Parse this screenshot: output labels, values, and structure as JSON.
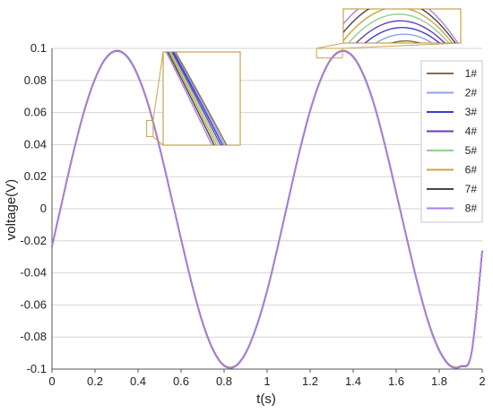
{
  "chart_data": {
    "type": "line",
    "title": "",
    "xlabel": "t(s)",
    "ylabel": "voltage(V)",
    "xlim": [
      0,
      2
    ],
    "ylim": [
      -0.1,
      0.1
    ],
    "x_ticks": [
      0,
      0.2,
      0.4,
      0.6,
      0.8,
      1,
      1.2,
      1.4,
      1.6,
      1.8,
      2
    ],
    "x_tick_labels": [
      "0",
      "0.2",
      "0.4",
      "0.6",
      "0.8",
      "1",
      "1.2",
      "1.4",
      "1.6",
      "1.8",
      "2"
    ],
    "y_ticks": [
      -0.1,
      -0.08,
      -0.06,
      -0.04,
      -0.02,
      0,
      0.02,
      0.04,
      0.06,
      0.08,
      0.1
    ],
    "y_tick_labels": [
      "-0.1",
      "-0.08",
      "-0.06",
      "-0.04",
      "-0.02",
      "0",
      "0.02",
      "0.04",
      "0.06",
      "0.08",
      "0.1"
    ],
    "grid": "horizontal",
    "legend_position": "right",
    "x": [
      0,
      0.05,
      0.1,
      0.15,
      0.2,
      0.25,
      0.3,
      0.35,
      0.4,
      0.45,
      0.5,
      0.55,
      0.6,
      0.65,
      0.7,
      0.75,
      0.8,
      0.85,
      0.9,
      0.95,
      1,
      1.05,
      1.1,
      1.15,
      1.2,
      1.25,
      1.3,
      1.35,
      1.4,
      1.45,
      1.5,
      1.55,
      1.6,
      1.65,
      1.7,
      1.75,
      1.8,
      1.85,
      1.9,
      1.95,
      2
    ],
    "series": [
      {
        "name": "1#",
        "color": "#8b6b4a",
        "values": [
          -0.0233,
          0.0064,
          0.0355,
          0.0612,
          0.0809,
          0.0939,
          0.0985,
          0.0948,
          0.0829,
          0.0639,
          0.0385,
          0.0101,
          -0.0188,
          -0.0468,
          -0.0709,
          -0.0882,
          -0.0978,
          -0.0983,
          -0.09,
          -0.0737,
          -0.0511,
          -0.0233,
          0.0064,
          0.0355,
          0.0612,
          0.0809,
          0.0939,
          0.0985,
          0.0948,
          0.0829,
          0.0639,
          0.0385,
          0.0101,
          -0.0188,
          -0.0468,
          -0.0709,
          -0.0882,
          -0.0978,
          -0.0983,
          -0.09,
          -0.0262
        ]
      },
      {
        "name": "2#",
        "color": "#8fa3e8",
        "values": [
          -0.0235,
          0.0062,
          0.0353,
          0.061,
          0.0808,
          0.0938,
          0.0984,
          0.0947,
          0.0827,
          0.0637,
          0.0383,
          0.0099,
          -0.019,
          -0.047,
          -0.0711,
          -0.0884,
          -0.0979,
          -0.0984,
          -0.0901,
          -0.0738,
          -0.0513,
          -0.0235,
          0.0062,
          0.0353,
          0.061,
          0.0808,
          0.0938,
          0.0984,
          0.0947,
          0.0827,
          0.0637,
          0.0383,
          0.0099,
          -0.019,
          -0.047,
          -0.0711,
          -0.0884,
          -0.0979,
          -0.0984,
          -0.0901,
          -0.0264
        ]
      },
      {
        "name": "3#",
        "color": "#3b3fc4",
        "values": [
          -0.0236,
          0.0061,
          0.0352,
          0.0609,
          0.0807,
          0.0937,
          0.0983,
          0.0946,
          0.0826,
          0.0636,
          0.0382,
          0.0098,
          -0.0191,
          -0.0471,
          -0.0712,
          -0.0885,
          -0.098,
          -0.0985,
          -0.0902,
          -0.0739,
          -0.0514,
          -0.0236,
          0.0061,
          0.0352,
          0.0609,
          0.0807,
          0.0937,
          0.0983,
          0.0946,
          0.0826,
          0.0636,
          0.0382,
          0.0098,
          -0.0191,
          -0.0471,
          -0.0712,
          -0.0885,
          -0.098,
          -0.0985,
          -0.0902,
          -0.0265
        ]
      },
      {
        "name": "4#",
        "color": "#6a3fb8",
        "values": [
          -0.0234,
          0.0063,
          0.0354,
          0.0611,
          0.0808,
          0.0938,
          0.0984,
          0.0947,
          0.0828,
          0.0638,
          0.0384,
          0.01,
          -0.0189,
          -0.0469,
          -0.071,
          -0.0883,
          -0.0979,
          -0.0984,
          -0.0901,
          -0.0738,
          -0.0512,
          -0.0234,
          0.0063,
          0.0354,
          0.0611,
          0.0808,
          0.0938,
          0.0984,
          0.0947,
          0.0828,
          0.0638,
          0.0384,
          0.01,
          -0.0189,
          -0.0469,
          -0.071,
          -0.0883,
          -0.0979,
          -0.0984,
          -0.0901,
          -0.0263
        ]
      },
      {
        "name": "5#",
        "color": "#8fd18a",
        "values": [
          -0.0232,
          0.0065,
          0.0356,
          0.0613,
          0.081,
          0.094,
          0.0986,
          0.0949,
          0.083,
          0.064,
          0.0386,
          0.0102,
          -0.0187,
          -0.0467,
          -0.0708,
          -0.0881,
          -0.0977,
          -0.0982,
          -0.0899,
          -0.0736,
          -0.051,
          -0.0232,
          0.0065,
          0.0356,
          0.0613,
          0.081,
          0.094,
          0.0986,
          0.0949,
          0.083,
          0.064,
          0.0386,
          0.0102,
          -0.0187,
          -0.0467,
          -0.0708,
          -0.0881,
          -0.0977,
          -0.0982,
          -0.0899,
          -0.0261
        ]
      },
      {
        "name": "6#",
        "color": "#c9a34a",
        "values": [
          -0.0231,
          0.0066,
          0.0357,
          0.0614,
          0.0811,
          0.0941,
          0.0987,
          0.095,
          0.0831,
          0.0641,
          0.0387,
          0.0103,
          -0.0186,
          -0.0466,
          -0.0707,
          -0.088,
          -0.0976,
          -0.0981,
          -0.0898,
          -0.0735,
          -0.0509,
          -0.0231,
          0.0066,
          0.0357,
          0.0614,
          0.0811,
          0.0941,
          0.0987,
          0.095,
          0.0831,
          0.0641,
          0.0387,
          0.0103,
          -0.0186,
          -0.0466,
          -0.0707,
          -0.088,
          -0.0976,
          -0.0981,
          -0.0898,
          -0.026
        ]
      },
      {
        "name": "7#",
        "color": "#444444",
        "values": [
          -0.0233,
          0.0064,
          0.0355,
          0.0612,
          0.0809,
          0.0939,
          0.0985,
          0.0948,
          0.0829,
          0.0639,
          0.0385,
          0.0101,
          -0.0188,
          -0.0468,
          -0.0709,
          -0.0882,
          -0.0978,
          -0.0983,
          -0.09,
          -0.0737,
          -0.0511,
          -0.0233,
          0.0064,
          0.0355,
          0.0612,
          0.0809,
          0.0939,
          0.0985,
          0.0948,
          0.0829,
          0.0639,
          0.0385,
          0.0101,
          -0.0188,
          -0.0468,
          -0.0709,
          -0.0882,
          -0.0978,
          -0.0983,
          -0.09,
          -0.0262
        ]
      },
      {
        "name": "8#",
        "color": "#b07ee8",
        "values": [
          -0.0234,
          0.0063,
          0.0354,
          0.0611,
          0.0808,
          0.0938,
          0.0984,
          0.0947,
          0.0828,
          0.0638,
          0.0384,
          0.01,
          -0.0189,
          -0.0469,
          -0.071,
          -0.0883,
          -0.0979,
          -0.0984,
          -0.0901,
          -0.0738,
          -0.0512,
          -0.0234,
          0.0063,
          0.0354,
          0.0611,
          0.0808,
          0.0938,
          0.0984,
          0.0947,
          0.0828,
          0.0638,
          0.0384,
          0.01,
          -0.0189,
          -0.0469,
          -0.071,
          -0.0883,
          -0.0979,
          -0.0984,
          -0.0901,
          -0.0263
        ]
      }
    ],
    "annotations": [
      {
        "type": "zoom-inset",
        "region_x": [
          0.44,
          0.47
        ],
        "region_y": [
          0.045,
          0.055
        ],
        "color": "#c9a34a"
      },
      {
        "type": "zoom-inset",
        "region_x": [
          1.23,
          1.35
        ],
        "region_y": [
          0.094,
          0.1
        ],
        "color": "#c9a34a"
      }
    ]
  }
}
